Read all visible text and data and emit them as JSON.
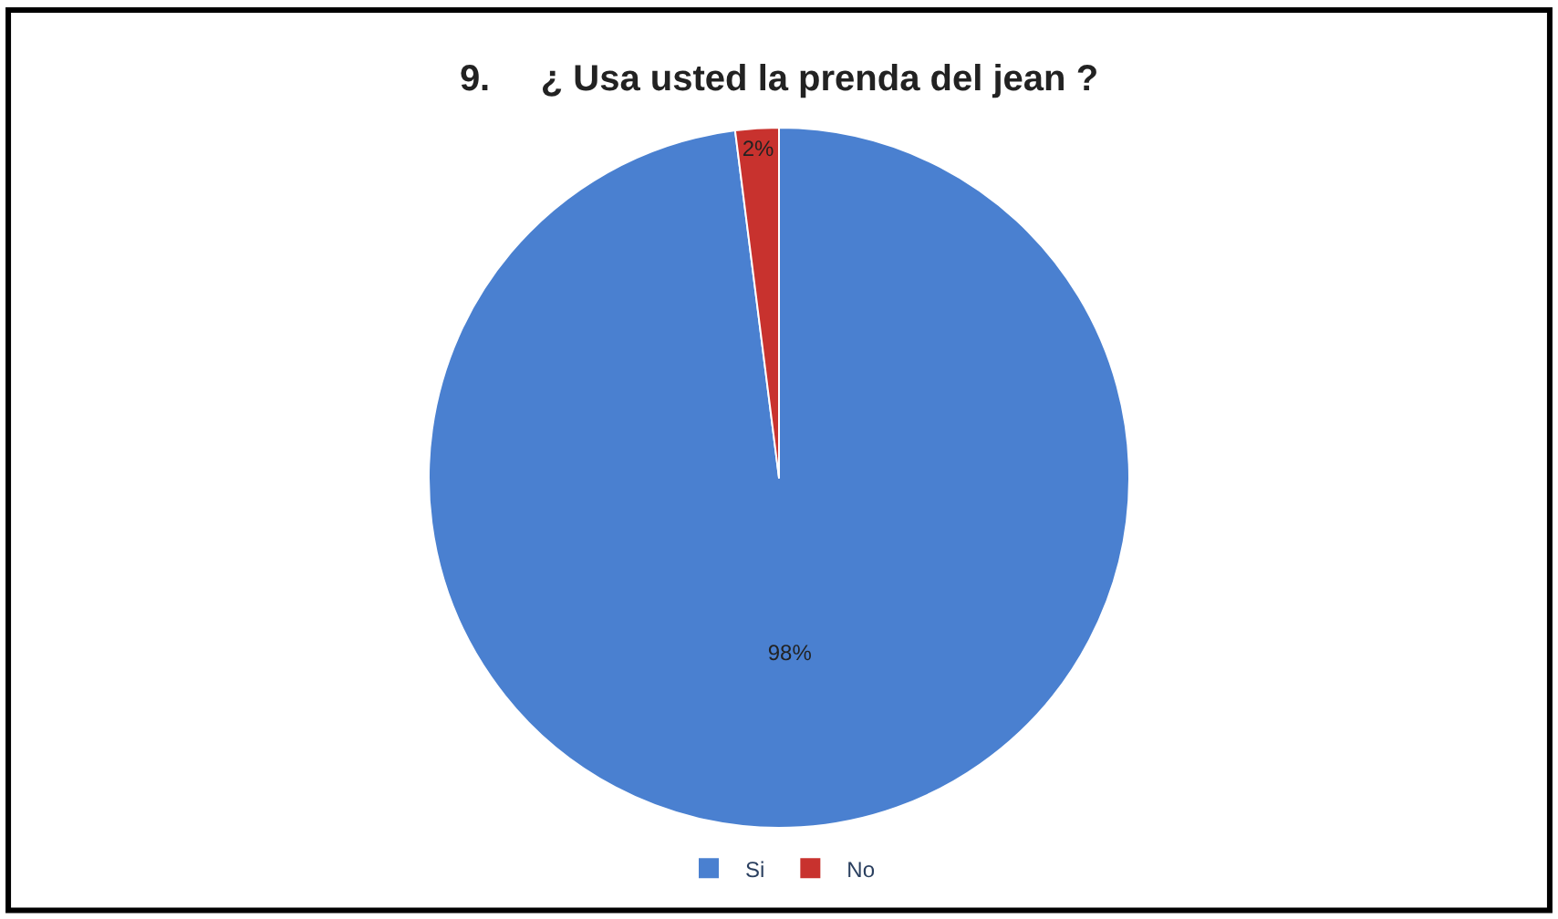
{
  "chart_data": {
    "type": "pie",
    "title": "9.     ¿ Usa usted la prenda del jean ?",
    "categories": [
      "Si",
      "No"
    ],
    "values": [
      98,
      2
    ],
    "colors": [
      "#4a80d0",
      "#c8322e"
    ],
    "value_labels": [
      "98%",
      "2%"
    ],
    "legend": "bottom"
  }
}
